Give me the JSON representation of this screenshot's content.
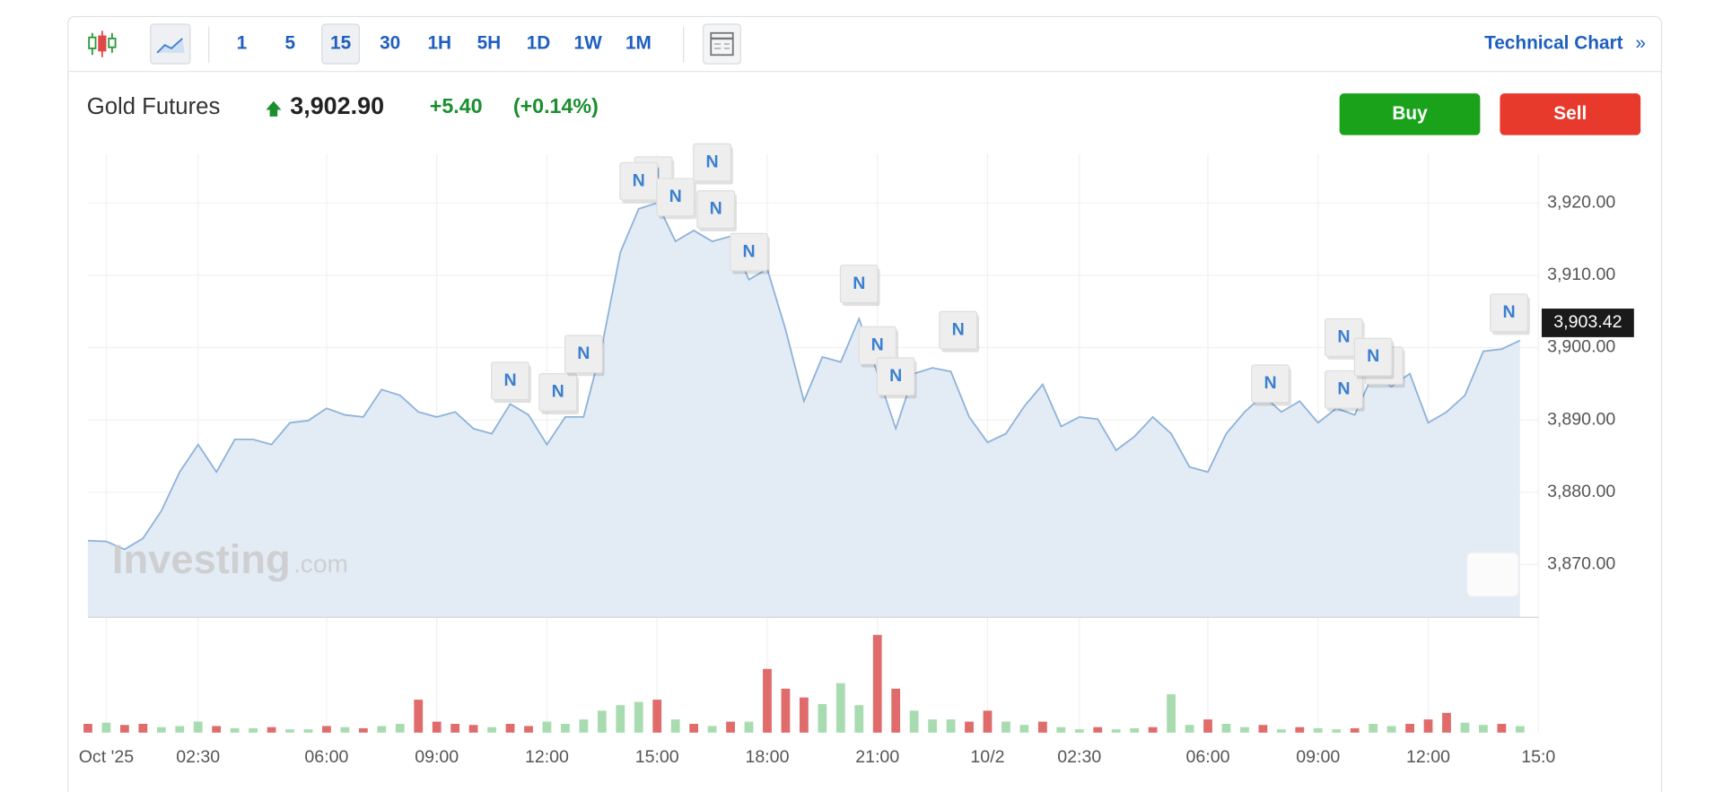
{
  "toolbar": {
    "intervals": [
      "1",
      "5",
      "15",
      "30",
      "1H",
      "5H",
      "1D",
      "1W",
      "1M"
    ],
    "active_index": 2,
    "technical_chart": "Technical Chart",
    "chevron": "»"
  },
  "header": {
    "name": "Gold Futures",
    "price": "3,902.90",
    "change": "+5.40",
    "change_percent": "(+0.14%)"
  },
  "buttons": {
    "buy": "Buy",
    "sell": "Sell"
  },
  "watermark": {
    "brand": "Investing",
    "suffix": ".com"
  },
  "chart_data": [
    {
      "type": "line",
      "color": "#8fb3d9",
      "fill": "#e3ecf5",
      "x": [
        -0.5,
        0,
        0.5,
        1,
        1.5,
        2,
        2.5,
        3,
        3.5,
        4,
        4.5,
        5,
        5.5,
        6,
        6.5,
        7,
        7.5,
        8,
        8.5,
        9,
        9.5,
        10,
        10.5,
        11,
        11.5,
        12,
        12.5,
        13,
        13.5,
        14,
        14.5,
        15,
        15.5,
        16,
        16.5,
        17,
        17.5,
        18,
        18.5,
        19,
        19.5,
        20,
        20.5,
        21,
        21.5,
        22,
        22.5,
        23,
        23.5,
        24,
        24.5,
        25,
        25.5,
        26,
        26.5,
        27,
        27.5,
        28,
        28.5,
        29,
        29.5,
        30,
        30.5,
        31,
        31.5,
        32,
        32.5,
        33,
        33.5,
        34,
        34.5,
        35,
        35.5,
        36,
        36.5,
        37,
        37.5,
        38,
        38.5
      ],
      "values": [
        3873.3,
        3873.2,
        3872.1,
        3873.6,
        3877.4,
        3882.8,
        3886.6,
        3882.8,
        3887.3,
        3887.3,
        3886.6,
        3889.6,
        3889.9,
        3891.6,
        3890.7,
        3890.4,
        3894.2,
        3893.4,
        3891.1,
        3890.4,
        3891.1,
        3888.8,
        3888.1,
        3892.2,
        3890.7,
        3886.6,
        3890.4,
        3890.4,
        3900.2,
        3913.2,
        3919.2,
        3920.0,
        3914.7,
        3916.2,
        3914.7,
        3915.4,
        3909.4,
        3910.9,
        3902.5,
        3892.6,
        3898.7,
        3898.0,
        3904.0,
        3896.4,
        3888.8,
        3896.4,
        3897.2,
        3896.7,
        3890.4,
        3886.9,
        3888.1,
        3891.9,
        3894.9,
        3889.1,
        3890.4,
        3890.1,
        3885.8,
        3887.7,
        3890.4,
        3888.1,
        3883.5,
        3882.8,
        3888.1,
        3891.1,
        3893.4,
        3891.1,
        3892.6,
        3889.6,
        3891.6,
        3890.7,
        3896.4,
        3894.6,
        3896.4,
        3889.6,
        3891.1,
        3893.4,
        3899.5,
        3899.8,
        3901.0
      ],
      "xlim": [
        -0.5,
        39
      ],
      "ylim": [
        3862.7,
        3926.8
      ],
      "xticks": [
        {
          "value": 0,
          "label": "Oct '25"
        },
        {
          "value": 2.5,
          "label": "02:30"
        },
        {
          "value": 6,
          "label": "06:00"
        },
        {
          "value": 9,
          "label": "09:00"
        },
        {
          "value": 12,
          "label": "12:00"
        },
        {
          "value": 15,
          "label": "15:00"
        },
        {
          "value": 18,
          "label": "18:00"
        },
        {
          "value": 21,
          "label": "21:00"
        },
        {
          "value": 24,
          "label": "10/2"
        },
        {
          "value": 26.5,
          "label": "02:30"
        },
        {
          "value": 30,
          "label": "06:00"
        },
        {
          "value": 33,
          "label": "09:00"
        },
        {
          "value": 36,
          "label": "12:00"
        },
        {
          "value": 39,
          "label": "15:0"
        }
      ],
      "yticks": [
        {
          "value": 3870,
          "label": "3,870.00"
        },
        {
          "value": 3880,
          "label": "3,880.00"
        },
        {
          "value": 3890,
          "label": "3,890.00"
        },
        {
          "value": 3900,
          "label": "3,900.00"
        },
        {
          "value": 3910,
          "label": "3,910.00"
        },
        {
          "value": 3920,
          "label": "3,920.00"
        }
      ],
      "grid": true,
      "last_price": {
        "value": 3903.42,
        "label": "3,903.42"
      },
      "annotations": [
        {
          "text": "N",
          "x": 11.0,
          "y": 3895.4
        },
        {
          "text": "N",
          "x": 12.3,
          "y": 3893.8
        },
        {
          "text": "N",
          "x": 13.0,
          "y": 3899.1
        },
        {
          "text": "N",
          "x": 14.9,
          "y": 3923.8
        },
        {
          "text": "N",
          "x": 14.5,
          "y": 3923.0
        },
        {
          "text": "N",
          "x": 15.5,
          "y": 3920.8
        },
        {
          "text": "N",
          "x": 16.5,
          "y": 3925.6
        },
        {
          "text": "N",
          "x": 16.6,
          "y": 3919.1
        },
        {
          "text": "N",
          "x": 17.5,
          "y": 3913.2
        },
        {
          "text": "N",
          "x": 20.5,
          "y": 3908.8
        },
        {
          "text": "N",
          "x": 21.0,
          "y": 3900.3
        },
        {
          "text": "N",
          "x": 21.5,
          "y": 3896.0
        },
        {
          "text": "N",
          "x": 23.2,
          "y": 3902.4
        },
        {
          "text": "N",
          "x": 31.7,
          "y": 3895.0
        },
        {
          "text": "N",
          "x": 33.7,
          "y": 3901.4
        },
        {
          "text": "N",
          "x": 33.7,
          "y": 3894.2
        },
        {
          "text": "N",
          "x": 34.8,
          "y": 3897.5
        },
        {
          "text": "N",
          "x": 34.5,
          "y": 3898.7
        },
        {
          "text": "N",
          "x": 38.2,
          "y": 3904.8
        }
      ]
    },
    {
      "type": "bar",
      "x": [
        -0.5,
        0,
        0.5,
        1,
        1.5,
        2,
        2.5,
        3,
        3.5,
        4,
        4.5,
        5,
        5.5,
        6,
        6.5,
        7,
        7.5,
        8,
        8.5,
        9,
        9.5,
        10,
        10.5,
        11,
        11.5,
        12,
        12.5,
        13,
        13.5,
        14,
        14.5,
        15,
        15.5,
        16,
        16.5,
        17,
        17.5,
        18,
        18.5,
        19,
        19.5,
        20,
        20.5,
        21,
        21.5,
        22,
        22.5,
        23,
        23.5,
        24,
        24.5,
        25,
        25.5,
        26,
        26.5,
        27,
        27.5,
        28,
        28.5,
        29,
        29.5,
        30,
        30.5,
        31,
        31.5,
        32,
        32.5,
        33,
        33.5,
        34,
        34.5,
        35,
        35.5,
        36,
        36.5,
        37,
        37.5,
        38,
        38.5
      ],
      "values": [
        8,
        9,
        7,
        8,
        5,
        6,
        10,
        6,
        4,
        4,
        5,
        3,
        3,
        6,
        5,
        4,
        6,
        8,
        30,
        10,
        8,
        7,
        5,
        8,
        6,
        10,
        8,
        12,
        20,
        25,
        28,
        30,
        12,
        8,
        6,
        10,
        10,
        58,
        40,
        32,
        26,
        45,
        25,
        89,
        40,
        20,
        12,
        12,
        10,
        20,
        10,
        7,
        10,
        5,
        3,
        5,
        3,
        4,
        5,
        35,
        7,
        12,
        8,
        5,
        7,
        3,
        5,
        4,
        3,
        4,
        8,
        6,
        8,
        12,
        18,
        9,
        7,
        8,
        6
      ],
      "colors": [
        "#e06b6b",
        "#a8dcb0",
        "#e06b6b",
        "#e06b6b",
        "#a8dcb0",
        "#a8dcb0",
        "#a8dcb0",
        "#e06b6b",
        "#a8dcb0",
        "#a8dcb0",
        "#e06b6b",
        "#a8dcb0",
        "#a8dcb0",
        "#e06b6b",
        "#a8dcb0",
        "#e06b6b",
        "#a8dcb0",
        "#a8dcb0",
        "#e06b6b",
        "#e06b6b",
        "#e06b6b",
        "#e06b6b",
        "#a8dcb0",
        "#e06b6b",
        "#e06b6b",
        "#a8dcb0",
        "#a8dcb0",
        "#a8dcb0",
        "#a8dcb0",
        "#a8dcb0",
        "#a8dcb0",
        "#e06b6b",
        "#a8dcb0",
        "#e06b6b",
        "#a8dcb0",
        "#e06b6b",
        "#a8dcb0",
        "#e06b6b",
        "#e06b6b",
        "#e06b6b",
        "#a8dcb0",
        "#a8dcb0",
        "#a8dcb0",
        "#e06b6b",
        "#e06b6b",
        "#a8dcb0",
        "#a8dcb0",
        "#a8dcb0",
        "#e06b6b",
        "#e06b6b",
        "#a8dcb0",
        "#a8dcb0",
        "#e06b6b",
        "#a8dcb0",
        "#a8dcb0",
        "#e06b6b",
        "#a8dcb0",
        "#a8dcb0",
        "#e06b6b",
        "#a8dcb0",
        "#a8dcb0",
        "#e06b6b",
        "#a8dcb0",
        "#a8dcb0",
        "#e06b6b",
        "#a8dcb0",
        "#e06b6b",
        "#a8dcb0",
        "#a8dcb0",
        "#e06b6b",
        "#a8dcb0",
        "#a8dcb0",
        "#e06b6b",
        "#e06b6b",
        "#e06b6b",
        "#a8dcb0",
        "#a8dcb0",
        "#e06b6b",
        "#a8dcb0"
      ],
      "xlim": [
        -0.5,
        39
      ],
      "ylim": [
        0,
        92
      ]
    }
  ]
}
